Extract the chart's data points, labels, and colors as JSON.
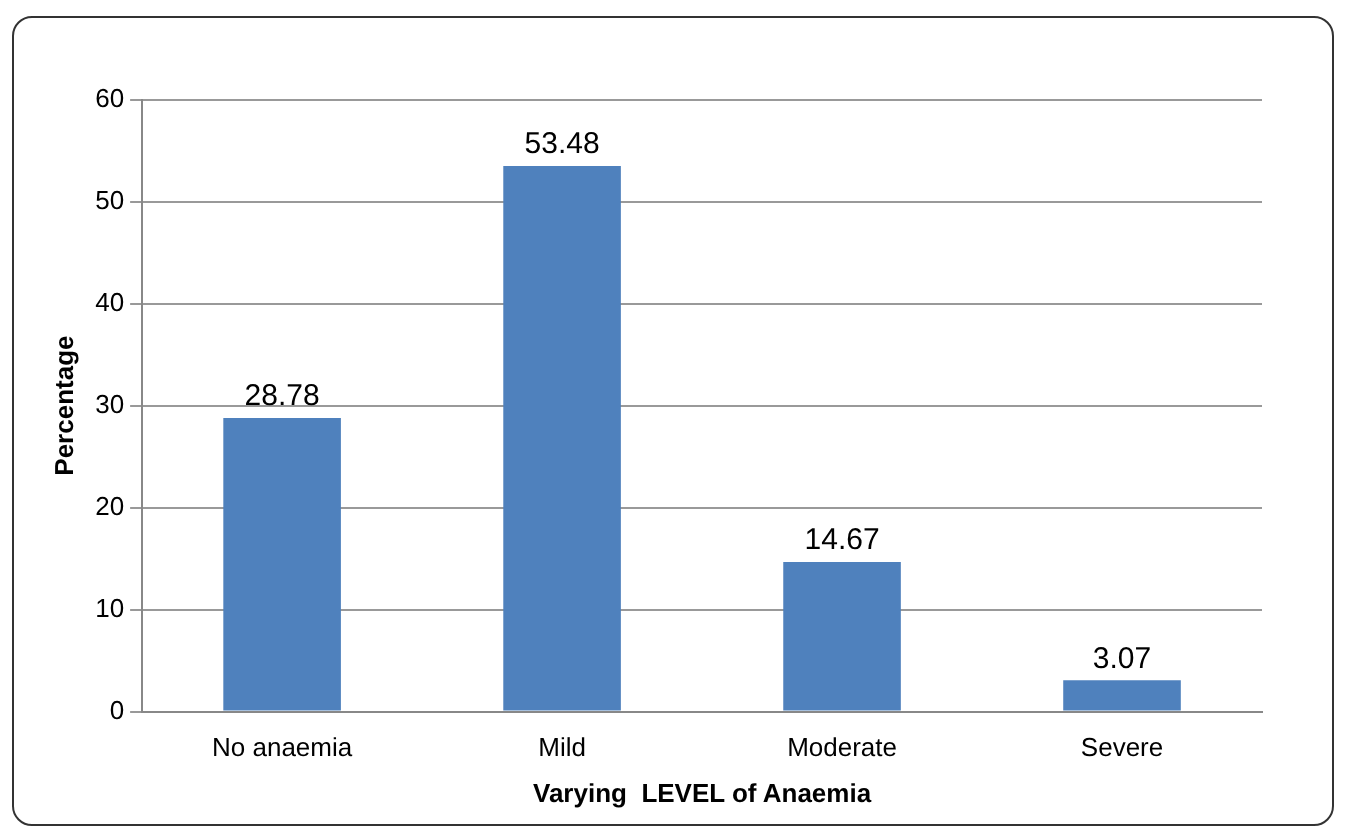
{
  "chart_data": {
    "type": "bar",
    "xlabel": "Varying  LEVEL of Anaemia",
    "ylabel": "Percentage",
    "categories": [
      "No anaemia",
      "Mild",
      "Moderate",
      "Severe"
    ],
    "values": [
      28.78,
      53.48,
      14.67,
      3.07
    ],
    "color": "#4f81bd",
    "ylim": [
      0,
      60
    ],
    "yticks": [
      0,
      10,
      20,
      30,
      40,
      50,
      60
    ],
    "grid": "y",
    "data_labels": true,
    "legend": false
  }
}
